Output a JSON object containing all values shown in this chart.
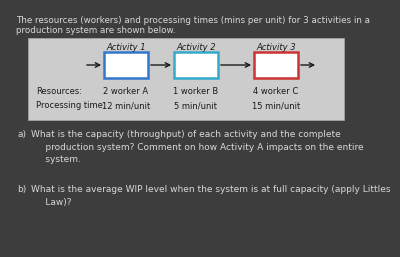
{
  "title_line1": "The resources (workers) and processing times (mins per unit) for 3 activities in a",
  "title_line2": "production system are shown below.",
  "bg_color": "#3d3d3d",
  "text_color": "#d8d8d8",
  "diagram_bg": "#cccccc",
  "activities": [
    "Activity 1",
    "Activity 2",
    "Activity 3"
  ],
  "resources": [
    "2 worker A",
    "1 worker B",
    "4 worker C"
  ],
  "proc_times": [
    "12 min/unit",
    "5 min/unit",
    "15 min/unit"
  ],
  "box_colors": [
    "#3377cc",
    "#33aacc",
    "#cc3333"
  ],
  "resources_label": "Resources:",
  "proc_time_label": "Processing time:",
  "qa_label": "a)",
  "qa_body": "What is the capacity (throughput) of each activity and the complete\n     production system? Comment on how Activity A impacts on the entire\n     system.",
  "qb_label": "b)",
  "qb_body": "What is the average WIP level when the system is at full capacity (apply Littles\n     Law)?"
}
